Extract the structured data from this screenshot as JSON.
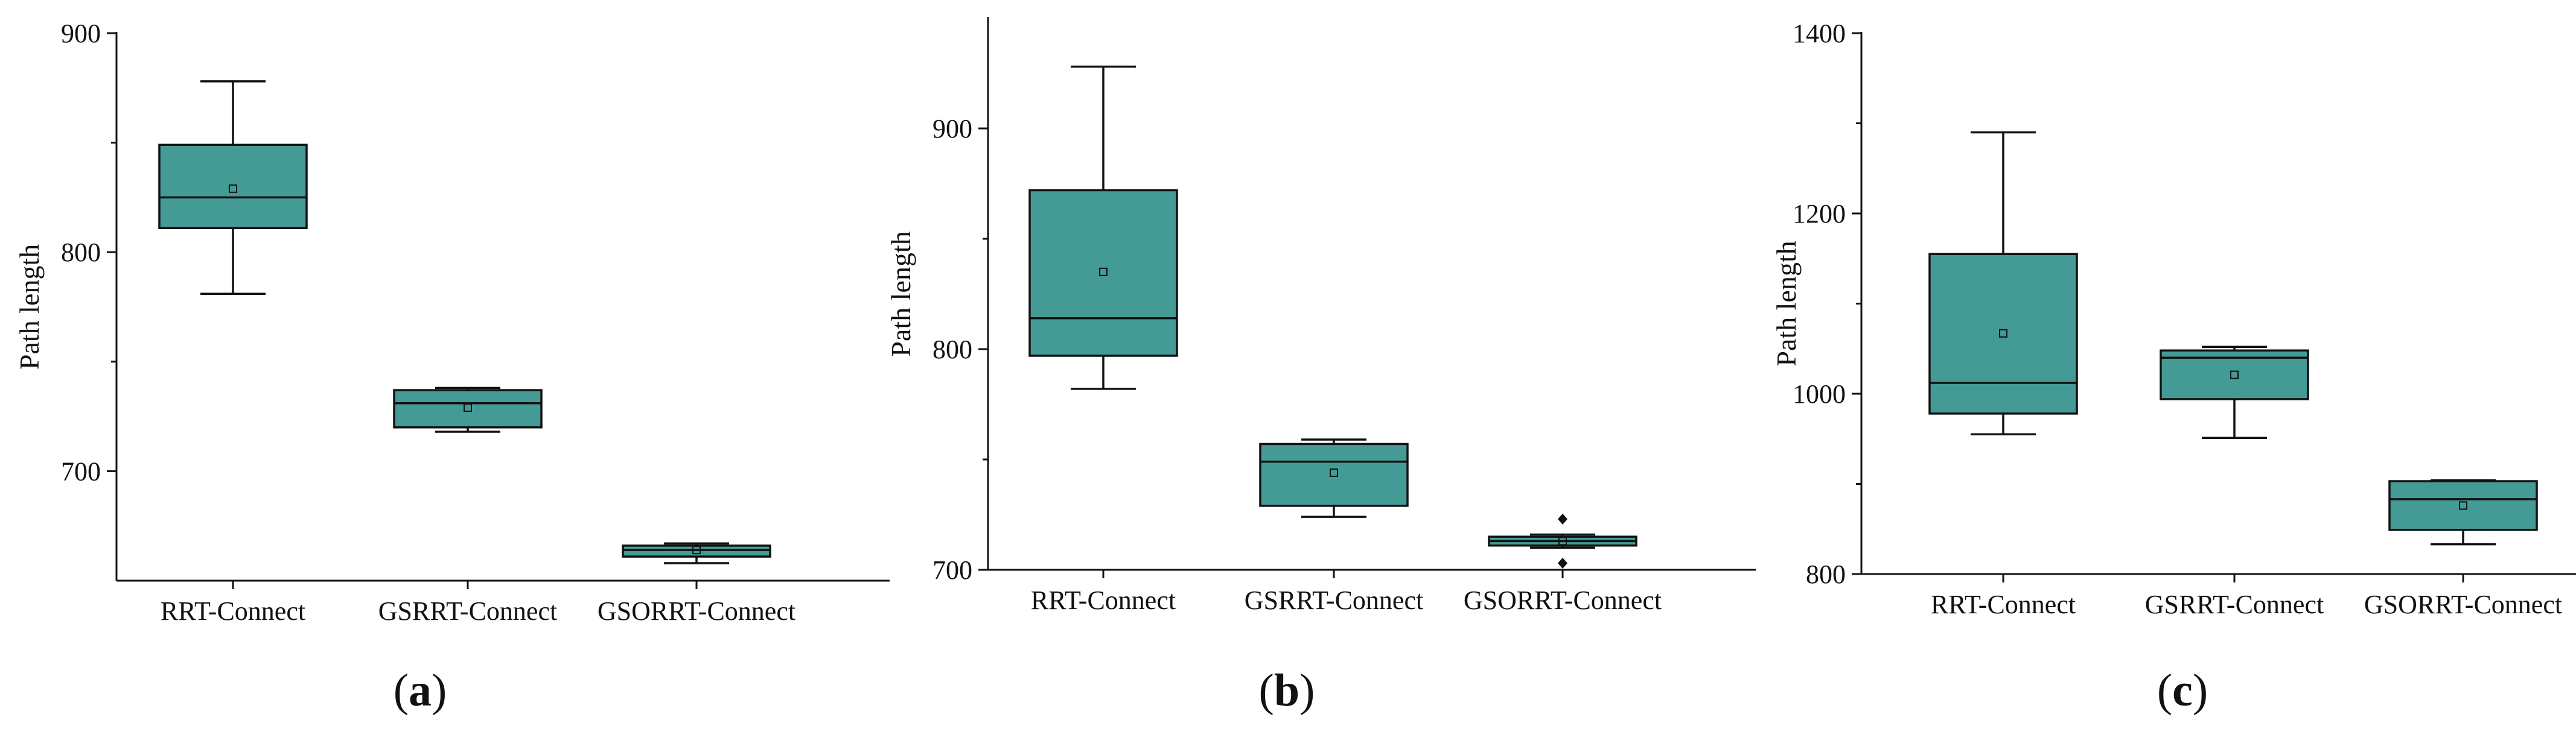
{
  "figure": {
    "box_color": "#449B96",
    "line_color": "#111111"
  },
  "chart_data": [
    {
      "type": "box",
      "panel_label": "(a)",
      "ylabel": "Path length",
      "xlabel": "",
      "ylim": [
        650,
        900
      ],
      "yticks": [
        700,
        800,
        900
      ],
      "categories": [
        "RRT-Connect",
        "GSRRT-Connect",
        "GSORRT-Connect"
      ],
      "boxes": [
        {
          "name": "RRT-Connect",
          "whisker_low": 781,
          "q1": 811,
          "median": 825,
          "q3": 849,
          "whisker_high": 878,
          "mean": 829,
          "outliers": []
        },
        {
          "name": "GSRRT-Connect",
          "whisker_low": 718,
          "q1": 720,
          "median": 731,
          "q3": 737,
          "whisker_high": 738,
          "mean": 729,
          "outliers": []
        },
        {
          "name": "GSORRT-Connect",
          "whisker_low": 658,
          "q1": 661,
          "median": 664,
          "q3": 666,
          "whisker_high": 667,
          "mean": 664,
          "outliers": []
        }
      ]
    },
    {
      "type": "box",
      "panel_label": "(b)",
      "ylabel": "Path length",
      "xlabel": "",
      "ylim": [
        700,
        950
      ],
      "yticks": [
        700,
        800,
        900
      ],
      "categories": [
        "RRT-Connect",
        "GSRRT-Connect",
        "GSORRT-Connect"
      ],
      "boxes": [
        {
          "name": "RRT-Connect",
          "whisker_low": 782,
          "q1": 797,
          "median": 814,
          "q3": 872,
          "whisker_high": 928,
          "mean": 835,
          "outliers": []
        },
        {
          "name": "GSRRT-Connect",
          "whisker_low": 724,
          "q1": 729,
          "median": 749,
          "q3": 757,
          "whisker_high": 759,
          "mean": 744,
          "outliers": []
        },
        {
          "name": "GSORRT-Connect",
          "whisker_low": 710,
          "q1": 711,
          "median": 713,
          "q3": 715,
          "whisker_high": 716,
          "mean": 713,
          "outliers": [
            703,
            723
          ]
        }
      ]
    },
    {
      "type": "box",
      "panel_label": "(c)",
      "ylabel": "Path length",
      "xlabel": "",
      "ylim": [
        800,
        1400
      ],
      "yticks": [
        800,
        1000,
        1200,
        1400
      ],
      "categories": [
        "RRT-Connect",
        "GSRRT-Connect",
        "GSORRT-Connect"
      ],
      "boxes": [
        {
          "name": "RRT-Connect",
          "whisker_low": 955,
          "q1": 978,
          "median": 1012,
          "q3": 1155,
          "whisker_high": 1290,
          "mean": 1067,
          "outliers": []
        },
        {
          "name": "GSRRT-Connect",
          "whisker_low": 951,
          "q1": 994,
          "median": 1040,
          "q3": 1048,
          "whisker_high": 1052,
          "mean": 1021,
          "outliers": []
        },
        {
          "name": "GSORRT-Connect",
          "whisker_low": 833,
          "q1": 849,
          "median": 883,
          "q3": 903,
          "whisker_high": 904,
          "mean": 876,
          "outliers": []
        }
      ]
    }
  ]
}
